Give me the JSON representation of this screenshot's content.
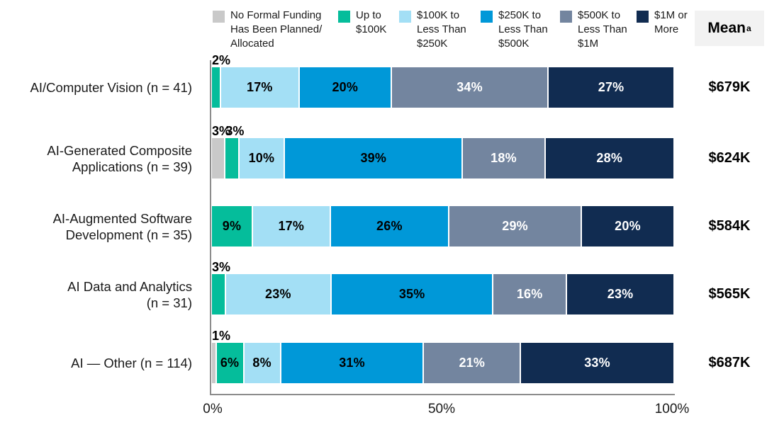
{
  "chart_data": {
    "type": "bar",
    "subtype": "horizontal-stacked",
    "title": "",
    "x_axis": {
      "ticks": [
        "0%",
        "50%",
        "100%"
      ],
      "range": [
        0,
        100
      ],
      "unit": "%"
    },
    "mean_column": {
      "header": "Mean",
      "superscript": "a"
    },
    "legend_position": "top",
    "legend": [
      {
        "label": "No Formal Funding Has Been Planned/Allocated",
        "label_lines": "No Formal Funding\nHas Been Planned/\nAllocated",
        "color": "#C9C9C9",
        "text_color": "#000000"
      },
      {
        "label": "Up to $100K",
        "label_lines": "Up to\n$100K",
        "color": "#05BD9B",
        "text_color": "#000000"
      },
      {
        "label": "$100K to Less Than $250K",
        "label_lines": "$100K to\nLess Than\n$250K",
        "color": "#A3DFF5",
        "text_color": "#000000"
      },
      {
        "label": "$250K to Less Than $500K",
        "label_lines": "$250K to\nLess Than\n$500K",
        "color": "#0098D8",
        "text_color": "#000000"
      },
      {
        "label": "$500K to Less Than $1M",
        "label_lines": "$500K to\nLess Than\n$1M",
        "color": "#73859F",
        "text_color": "#FFFFFF"
      },
      {
        "label": "$1M or More",
        "label_lines": "$1M or\nMore",
        "color": "#112C51",
        "text_color": "#FFFFFF"
      }
    ],
    "rows": [
      {
        "category": "AI/Computer Vision (n = 41)",
        "category_lines": "AI/Computer Vision (n = 41)",
        "mean": "$679K",
        "segments": [
          {
            "series": 1,
            "value": 2,
            "label": "2%",
            "label_position": "above"
          },
          {
            "series": 2,
            "value": 17,
            "label": "17%",
            "label_position": "inside"
          },
          {
            "series": 3,
            "value": 20,
            "label": "20%",
            "label_position": "inside"
          },
          {
            "series": 4,
            "value": 34,
            "label": "34%",
            "label_position": "inside"
          },
          {
            "series": 5,
            "value": 27,
            "label": "27%",
            "label_position": "inside"
          }
        ]
      },
      {
        "category": "AI-Generated Composite Applications (n = 39)",
        "category_lines": "AI-Generated Composite\nApplications (n = 39)",
        "mean": "$624K",
        "segments": [
          {
            "series": 0,
            "value": 3,
            "label": "3%",
            "label_position": "above"
          },
          {
            "series": 1,
            "value": 3,
            "label": "3%",
            "label_position": "above"
          },
          {
            "series": 2,
            "value": 10,
            "label": "10%",
            "label_position": "inside"
          },
          {
            "series": 3,
            "value": 39,
            "label": "39%",
            "label_position": "inside"
          },
          {
            "series": 4,
            "value": 18,
            "label": "18%",
            "label_position": "inside"
          },
          {
            "series": 5,
            "value": 28,
            "label": "28%",
            "label_position": "inside"
          }
        ]
      },
      {
        "category": "AI-Augmented Software Development (n = 35)",
        "category_lines": "AI-Augmented Software\nDevelopment (n = 35)",
        "mean": "$584K",
        "segments": [
          {
            "series": 1,
            "value": 9,
            "label": "9%",
            "label_position": "inside"
          },
          {
            "series": 2,
            "value": 17,
            "label": "17%",
            "label_position": "inside"
          },
          {
            "series": 3,
            "value": 26,
            "label": "26%",
            "label_position": "inside"
          },
          {
            "series": 4,
            "value": 29,
            "label": "29%",
            "label_position": "inside"
          },
          {
            "series": 5,
            "value": 20,
            "label": "20%",
            "label_position": "inside"
          }
        ]
      },
      {
        "category": "AI Data and Analytics (n = 31)",
        "category_lines": "AI Data and Analytics\n(n = 31)",
        "mean": "$565K",
        "segments": [
          {
            "series": 1,
            "value": 3,
            "label": "3%",
            "label_position": "above"
          },
          {
            "series": 2,
            "value": 23,
            "label": "23%",
            "label_position": "inside"
          },
          {
            "series": 3,
            "value": 35,
            "label": "35%",
            "label_position": "inside"
          },
          {
            "series": 4,
            "value": 16,
            "label": "16%",
            "label_position": "inside"
          },
          {
            "series": 5,
            "value": 23,
            "label": "23%",
            "label_position": "inside"
          }
        ]
      },
      {
        "category": "AI — Other (n = 114)",
        "category_lines": "AI — Other (n = 114)",
        "mean": "$687K",
        "segments": [
          {
            "series": 0,
            "value": 1,
            "label": "1%",
            "label_position": "above"
          },
          {
            "series": 1,
            "value": 6,
            "label": "6%",
            "label_position": "inside"
          },
          {
            "series": 2,
            "value": 8,
            "label": "8%",
            "label_position": "inside"
          },
          {
            "series": 3,
            "value": 31,
            "label": "31%",
            "label_position": "inside"
          },
          {
            "series": 4,
            "value": 21,
            "label": "21%",
            "label_position": "inside"
          },
          {
            "series": 5,
            "value": 33,
            "label": "33%",
            "label_position": "inside"
          }
        ]
      }
    ]
  }
}
